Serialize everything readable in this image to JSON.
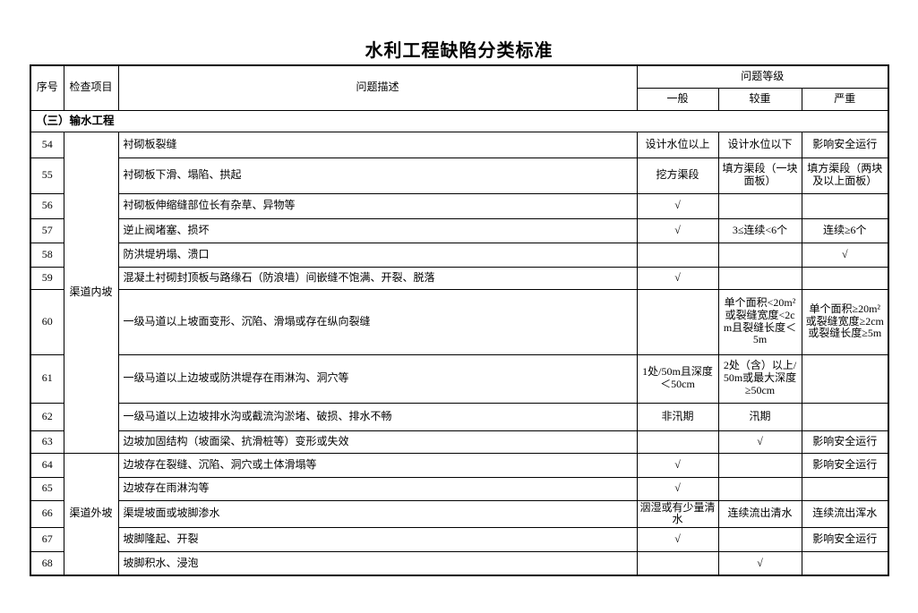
{
  "page": {
    "title": "水利工程缺陷分类标准"
  },
  "table": {
    "headers": {
      "serial": "序号",
      "inspection_item": "检查项目",
      "description": "问题描述",
      "grade_group": "问题等级",
      "grades": [
        "一般",
        "较重",
        "严重"
      ]
    },
    "section": "（三）输水工程",
    "groups": [
      {
        "label": "渠道内坡",
        "span": 10
      },
      {
        "label": "渠道外坡",
        "span": 5
      }
    ],
    "rows": [
      {
        "no": "54",
        "group": 0,
        "desc": "衬砌板裂缝",
        "general": "设计水位以上",
        "serious": "设计水位以下",
        "severe": "影响安全运行"
      },
      {
        "no": "55",
        "desc": "衬砌板下滑、塌陷、拱起",
        "general": "挖方渠段",
        "serious": "填方渠段（一块面板）",
        "severe": "填方渠段（两块及以上面板）"
      },
      {
        "no": "56",
        "desc": "衬砌板伸缩缝部位长有杂草、异物等",
        "general": "√",
        "serious": "",
        "severe": ""
      },
      {
        "no": "57",
        "desc": "逆止阀堵塞、损坏",
        "general": "√",
        "serious": "3≤连续<6个",
        "severe": "连续≥6个"
      },
      {
        "no": "58",
        "desc": "防洪堤坍塌、溃口",
        "general": "",
        "serious": "",
        "severe": "√"
      },
      {
        "no": "59",
        "desc": "混凝土衬砌封顶板与路缘石（防浪墙）间嵌缝不饱满、开裂、脱落",
        "general": "√",
        "serious": "",
        "severe": ""
      },
      {
        "no": "60",
        "desc": "一级马道以上坡面变形、沉陷、滑塌或存在纵向裂缝",
        "general": "",
        "serious": "单个面积<20m²或裂缝宽度<2cm且裂缝长度＜5m",
        "severe": "单个面积≥20m²或裂缝宽度≥2cm或裂缝长度≥5m"
      },
      {
        "no": "61",
        "desc": "一级马道以上边坡或防洪堤存在雨淋沟、洞穴等",
        "general": "1处/50m且深度＜50cm",
        "serious": "2处（含）以上/50m或最大深度≥50cm",
        "severe": ""
      },
      {
        "no": "62",
        "desc": "一级马道以上边坡排水沟或截流沟淤堵、破损、排水不畅",
        "general": "非汛期",
        "serious": "汛期",
        "severe": ""
      },
      {
        "no": "63",
        "desc": "边坡加固结构（坡面梁、抗滑桩等）变形或失效",
        "general": "",
        "serious": "√",
        "severe": "影响安全运行"
      },
      {
        "no": "64",
        "group": 1,
        "desc": "边坡存在裂缝、沉陷、洞穴或土体滑塌等",
        "general": "√",
        "serious": "",
        "severe": "影响安全运行"
      },
      {
        "no": "65",
        "desc": "边坡存在雨淋沟等",
        "general": "√",
        "serious": "",
        "severe": ""
      },
      {
        "no": "66",
        "desc": "渠堤坡面或坡脚渗水",
        "general": "洇湿或有少量清水",
        "serious": "连续流出清水",
        "severe": "连续流出浑水"
      },
      {
        "no": "67",
        "desc": "坡脚隆起、开裂",
        "general": "√",
        "serious": "",
        "severe": "影响安全运行"
      },
      {
        "no": "68",
        "desc": "坡脚积水、浸泡",
        "general": "",
        "serious": "√",
        "severe": ""
      }
    ]
  }
}
